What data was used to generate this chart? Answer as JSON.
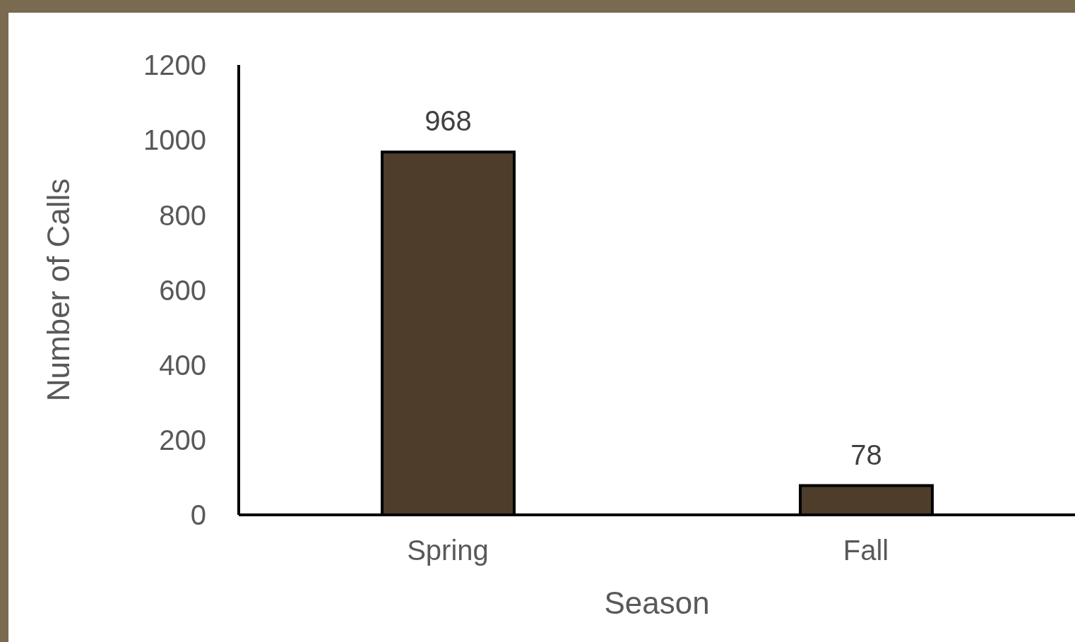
{
  "chart_data": {
    "type": "bar",
    "xlabel": "Season",
    "ylabel": "Number of Calls",
    "categories": [
      "Spring",
      "Fall"
    ],
    "values": [
      968,
      78
    ],
    "color": "#4d3d2a",
    "ylim": [
      0,
      1200
    ],
    "yticks": [
      0,
      200,
      400,
      600,
      800,
      1000,
      1200
    ],
    "data_labels": true,
    "grid": false
  }
}
